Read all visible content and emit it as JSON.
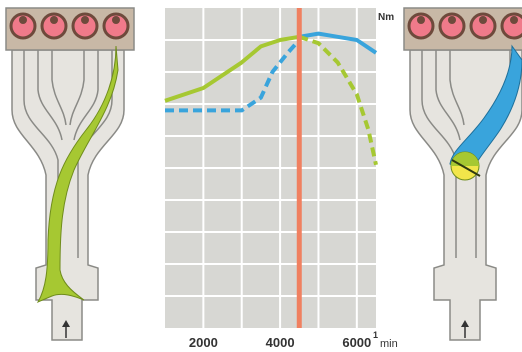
{
  "colors": {
    "manifold_fill": "#e6e4df",
    "manifold_stroke": "#8a8a86",
    "cylinder_block": "#c8b8a6",
    "cylinder_ring": "#6e4a3c",
    "cylinder_port": "#f07a8a",
    "green_path": "#a6c832",
    "blue_path": "#39a4dc",
    "flap_yellow": "#f2e64a",
    "plot_bg": "#d7d7d3",
    "grid": "#ffffff",
    "marker": "#f08060"
  },
  "left_manifold": {
    "icon": "intake-manifold-long-runner",
    "cylinders": 4
  },
  "right_manifold": {
    "icon": "intake-manifold-short-runner-with-flap",
    "cylinders": 4
  },
  "chart_data": {
    "type": "line",
    "ylabel": "Nm",
    "x_unit_superscript": "1",
    "x_unit": "min",
    "x_ticks": [
      "2000",
      "4000",
      "6000"
    ],
    "xlim": [
      1000,
      6500
    ],
    "ylim": [
      0,
      100
    ],
    "grid": true,
    "marker_rpm": 4500,
    "series": [
      {
        "color": "green",
        "style": "solid",
        "x": [
          1000,
          2000,
          3000,
          3500,
          4000,
          4500
        ],
        "y": [
          71,
          75,
          83,
          88,
          90,
          91
        ]
      },
      {
        "color": "blue",
        "style": "dashed",
        "x": [
          1000,
          2000,
          3000,
          3500,
          3800,
          4200,
          4500
        ],
        "y": [
          68,
          68,
          68,
          72,
          80,
          86,
          90
        ]
      },
      {
        "color": "blue",
        "style": "solid",
        "x": [
          4500,
          5000,
          5500,
          6000,
          6500
        ],
        "y": [
          91,
          92,
          91,
          90,
          86
        ]
      },
      {
        "color": "green",
        "style": "dashed",
        "x": [
          4500,
          5000,
          5500,
          6000,
          6300,
          6500
        ],
        "y": [
          91,
          89,
          83,
          73,
          62,
          51
        ]
      }
    ]
  }
}
